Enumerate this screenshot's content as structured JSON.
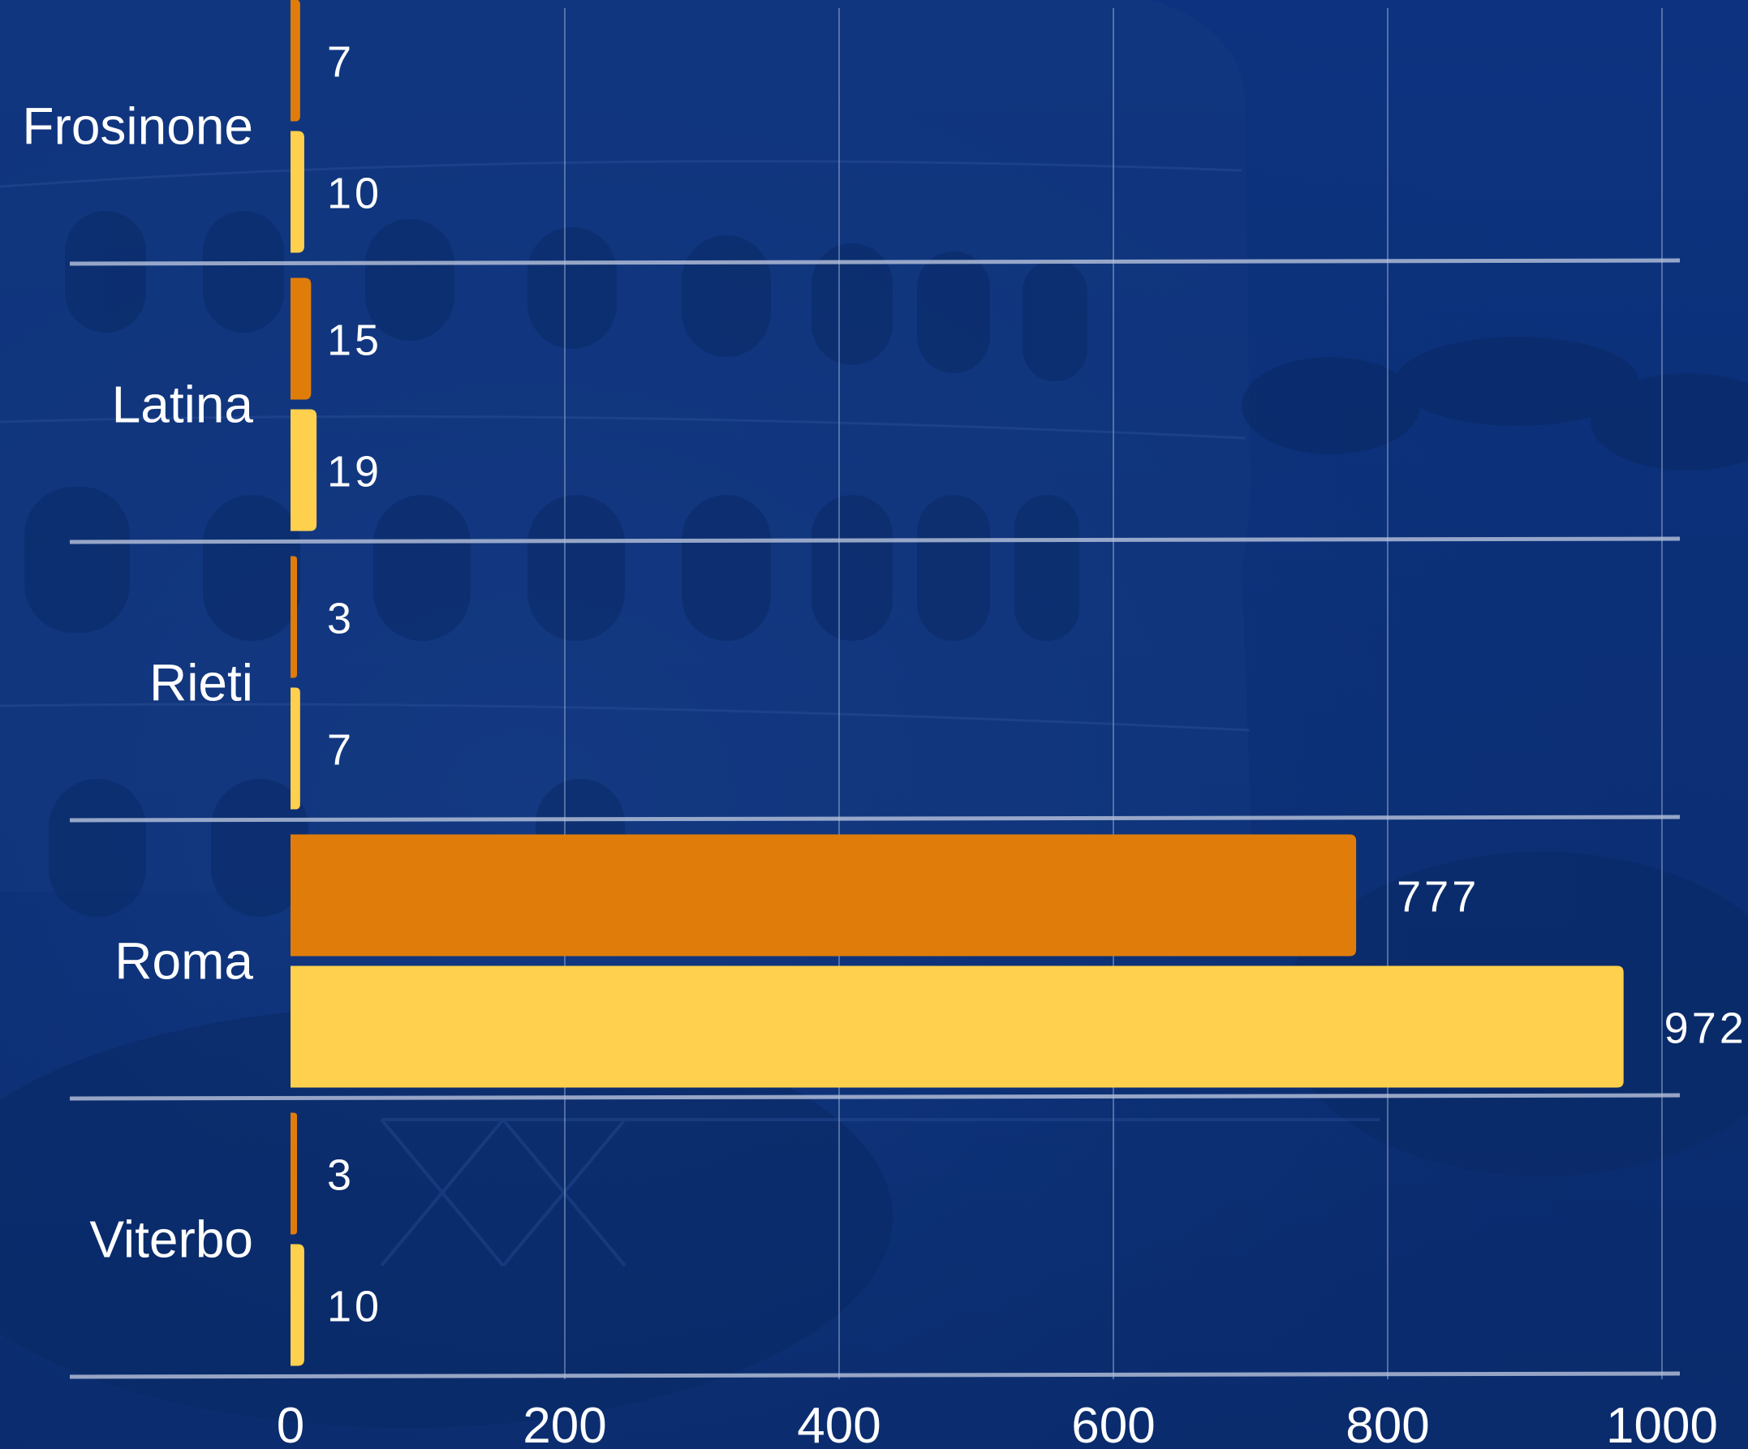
{
  "colors": {
    "background": "#0c2f73",
    "series_1": "#e07d0a",
    "series_2": "#ffd04d",
    "separator": "#b9c4dc",
    "gridline": "#8fa3cc",
    "text": "#ffffff"
  },
  "chart_data": {
    "type": "bar",
    "orientation": "horizontal",
    "categories": [
      "Frosinone",
      "Latina",
      "Rieti",
      "Roma",
      "Viterbo"
    ],
    "series": [
      {
        "color": "#e07d0a",
        "values": [
          7,
          15,
          3,
          777,
          3
        ]
      },
      {
        "color": "#ffd04d",
        "values": [
          10,
          19,
          7,
          972,
          10
        ]
      }
    ],
    "xlim": [
      0,
      1000
    ],
    "x_ticks": [
      0,
      200,
      400,
      600,
      800,
      1000
    ],
    "grid": true,
    "legend": "none",
    "background_image": "colosseum-photo"
  }
}
